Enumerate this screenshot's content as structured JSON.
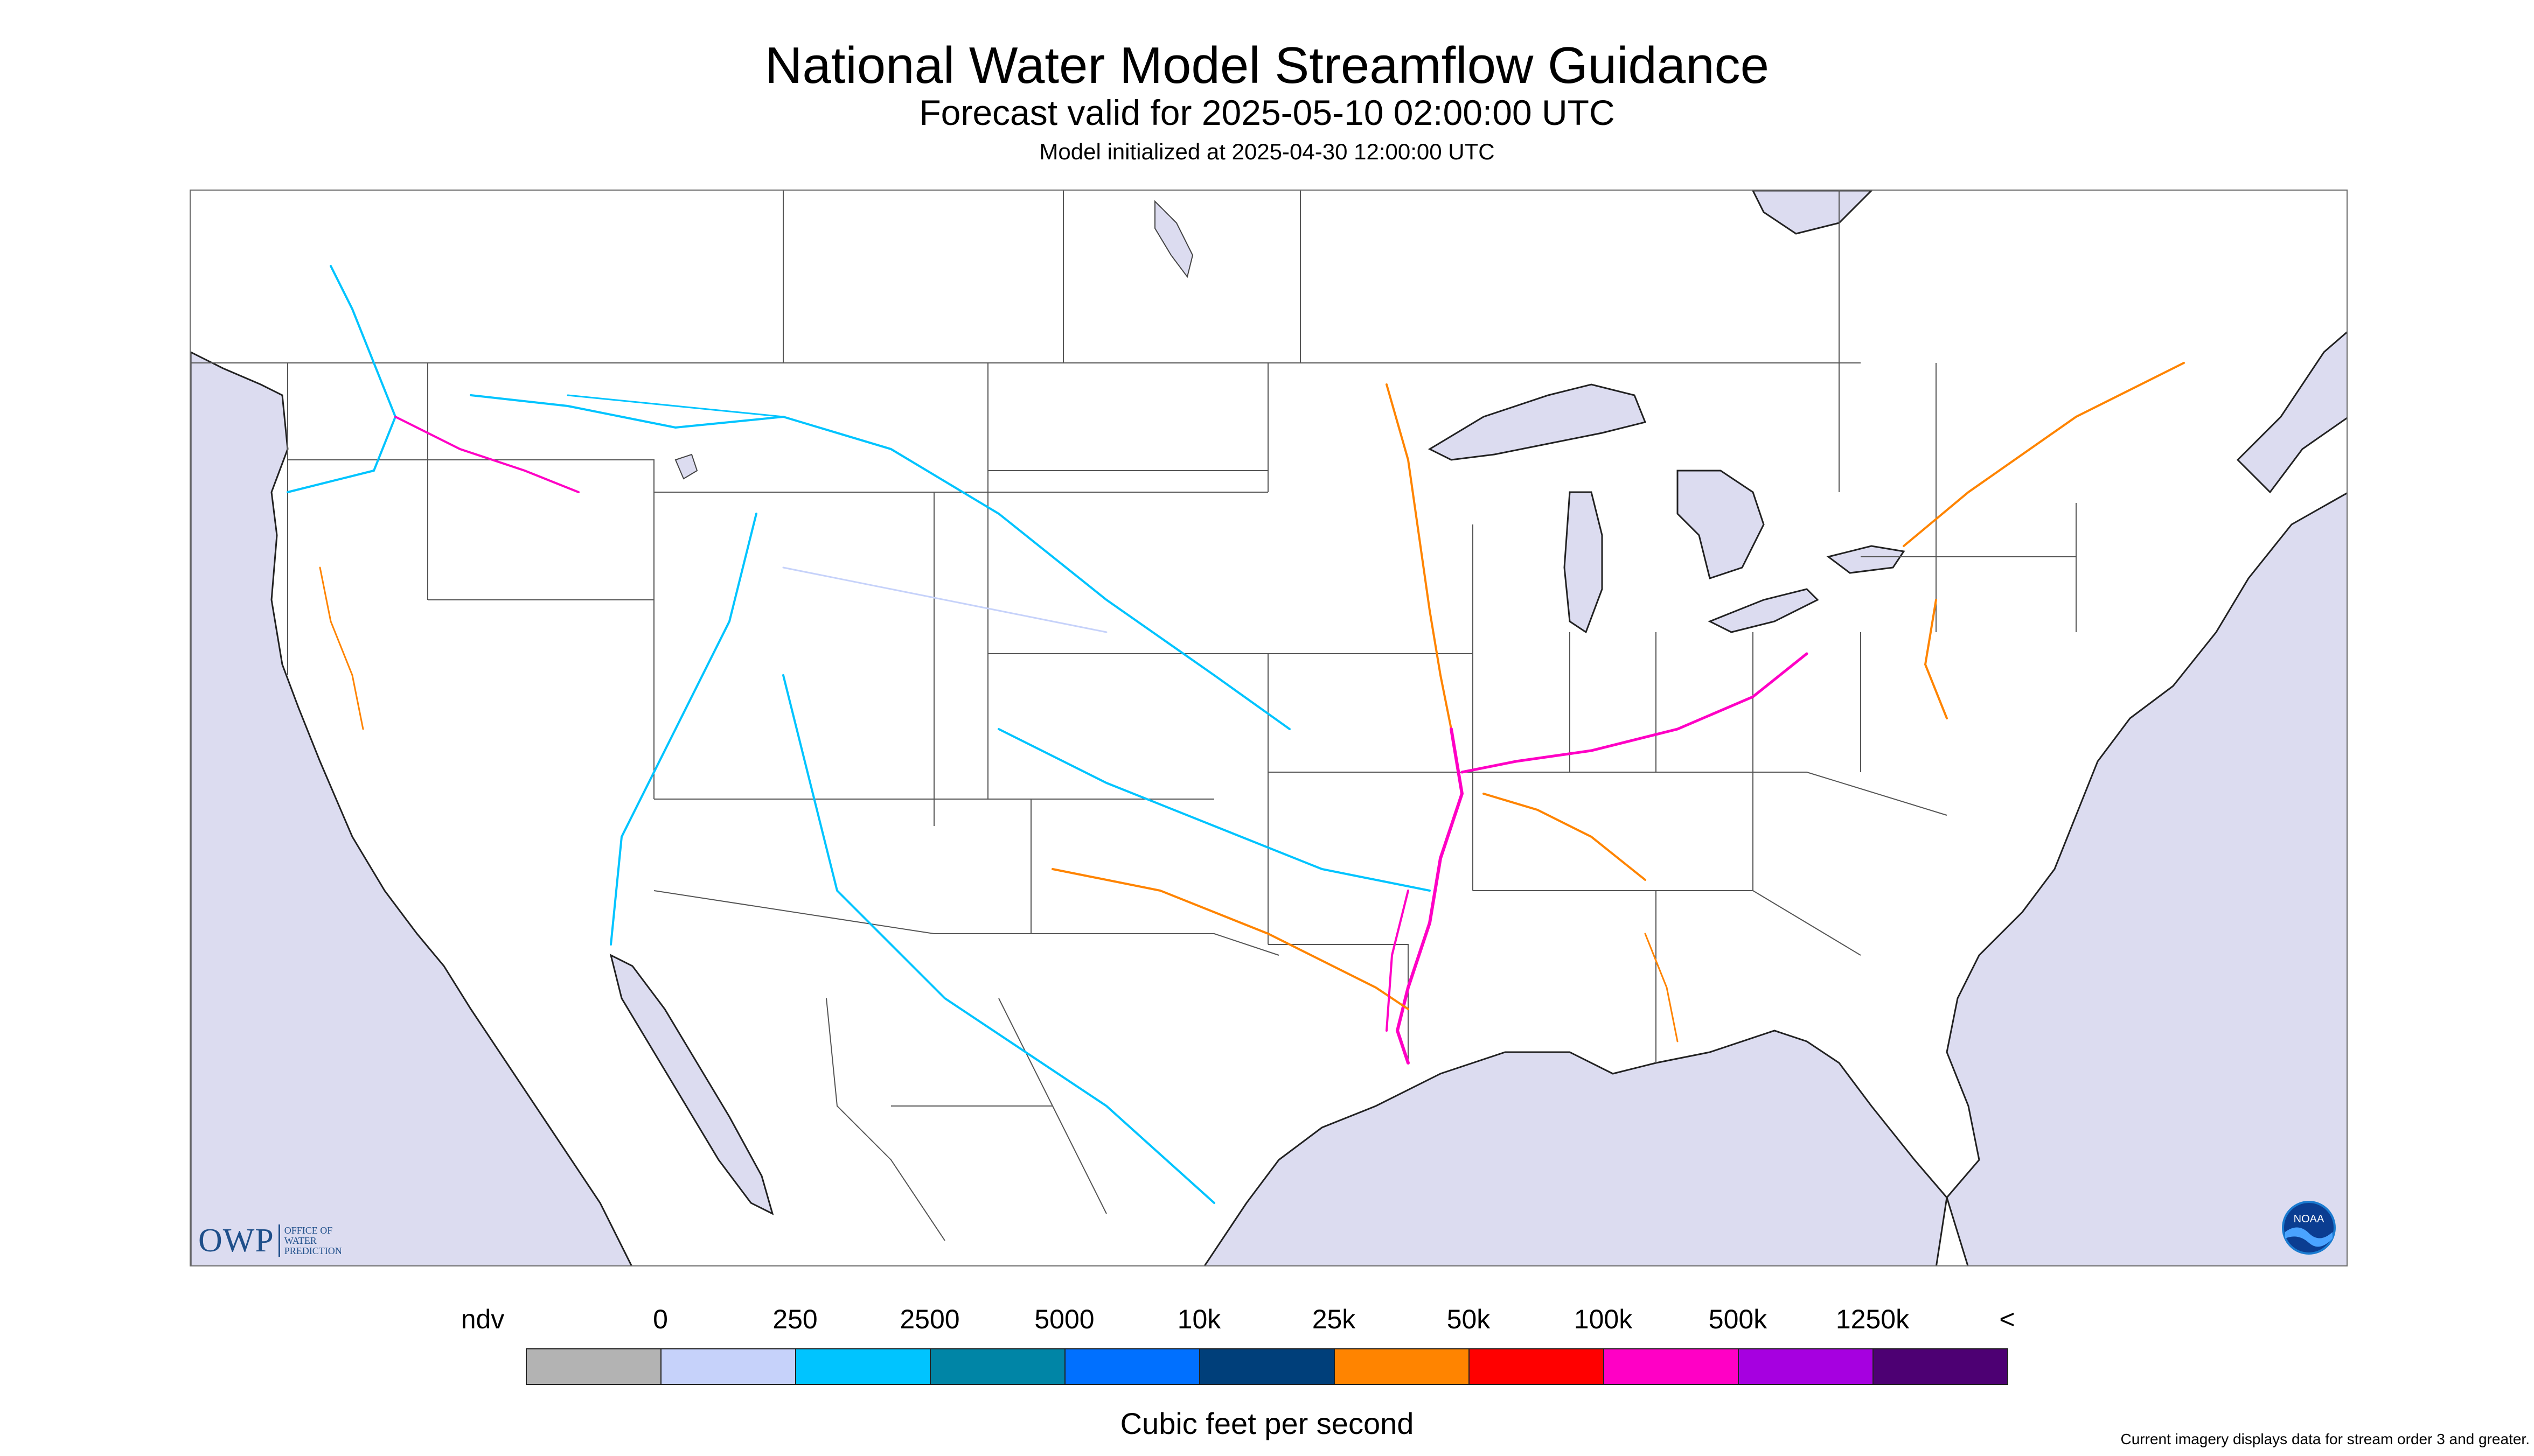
{
  "header": {
    "title": "National Water Model Streamflow Guidance",
    "subtitle": "Forecast valid for 2025-05-10 02:00:00 UTC",
    "init_line": "Model initialized at 2025-04-30 12:00:00 UTC"
  },
  "map": {
    "region": "CONUS",
    "land_color": "#ffffff",
    "water_color": "#dcdcf0",
    "boundary_color": "#555555",
    "logos": {
      "owp_mark": "OWP",
      "owp_text_lines": [
        "OFFICE OF",
        "WATER",
        "PREDICTION"
      ],
      "noaa_text": "NOAA"
    }
  },
  "legend": {
    "ticks": [
      "ndv",
      "0",
      "250",
      "2500",
      "5000",
      "10k",
      "25k",
      "50k",
      "100k",
      "500k",
      "1250k",
      "<"
    ],
    "swatches": [
      {
        "label": "ndv",
        "color": "#b3b3b3"
      },
      {
        "label": "0-250",
        "color": "#c6d2fa"
      },
      {
        "label": "250-2500",
        "color": "#00c4ff"
      },
      {
        "label": "2500-5000",
        "color": "#0085a6"
      },
      {
        "label": "5000-10k",
        "color": "#0070ff"
      },
      {
        "label": "10k-25k",
        "color": "#003f7a"
      },
      {
        "label": "25k-50k",
        "color": "#ff8400"
      },
      {
        "label": "50k-100k",
        "color": "#ff0000"
      },
      {
        "label": "100k-500k",
        "color": "#ff00c5"
      },
      {
        "label": "500k-1250k",
        "color": "#a600e0"
      },
      {
        "label": "1250k+",
        "color": "#4d0073"
      }
    ],
    "caption": "Cubic feet per second"
  },
  "footnote": "Current imagery displays data for stream order 3 and greater."
}
